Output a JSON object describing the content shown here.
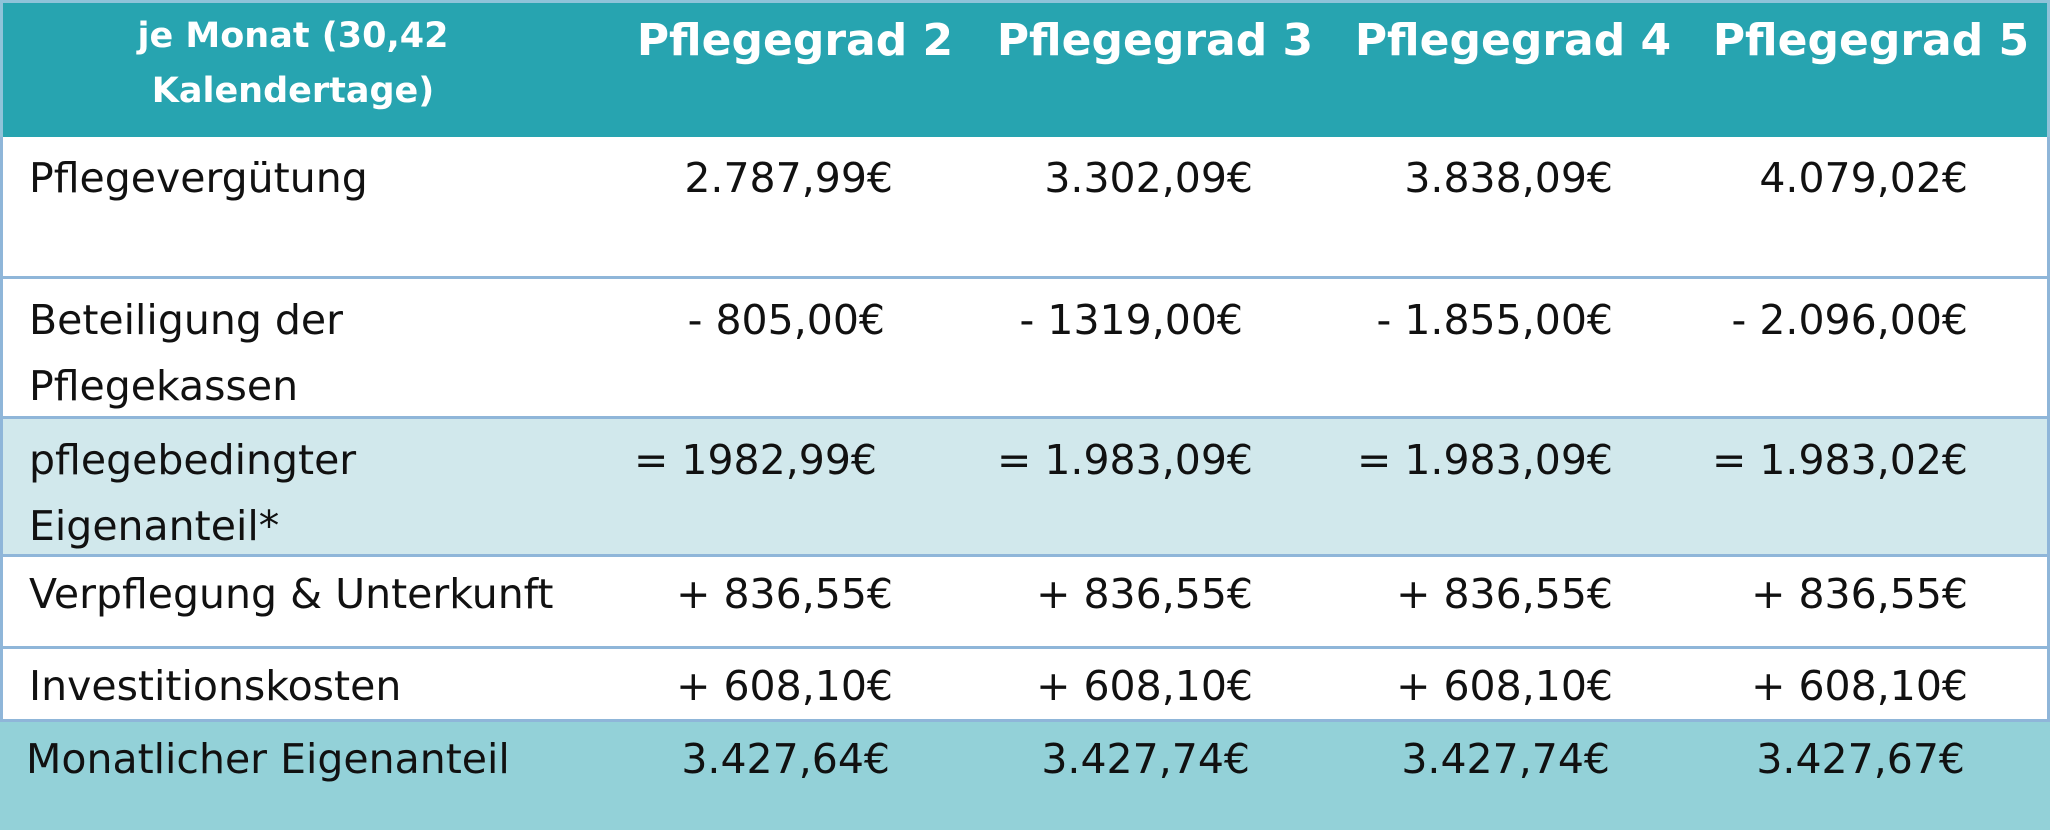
{
  "header": {
    "label": "je Monat (30,42 Kalendertage)",
    "columns": [
      "Pflegegrad 2",
      "Pflegegrad 3",
      "Pflegegrad 4",
      "Pflegegrad 5"
    ]
  },
  "rows": [
    {
      "label": "Pflegevergütung",
      "values": [
        "2.787,99€",
        "3.302,09€",
        "3.838,09€",
        "4.079,02€"
      ]
    },
    {
      "label": "Beteiligung der Pflegekassen",
      "values": [
        "- 805,00€",
        "- 1319,00€",
        "- 1.855,00€",
        "- 2.096,00€"
      ]
    },
    {
      "label": "pflegebedingter Eigenanteil*",
      "values": [
        "= 1982,99€",
        "= 1.983,09€",
        "= 1.983,09€",
        "= 1.983,02€"
      ]
    },
    {
      "label": "Verpflegung & Unterkunft",
      "values": [
        "+ 836,55€",
        "+ 836,55€",
        "+ 836,55€",
        "+ 836,55€"
      ]
    },
    {
      "label": "Investitionskosten",
      "values": [
        "+ 608,10€",
        "+ 608,10€",
        "+ 608,10€",
        "+ 608,10€"
      ]
    },
    {
      "label": "Monatlicher Eigenanteil",
      "values": [
        "3.427,64€",
        "3.427,74€",
        "3.427,74€",
        "3.427,67€"
      ]
    }
  ],
  "colors": {
    "header_bg": "#27a4b0",
    "band_bg": "#d1e8ec",
    "total_bg": "#93d1d8",
    "border": "#8fb6d9"
  }
}
